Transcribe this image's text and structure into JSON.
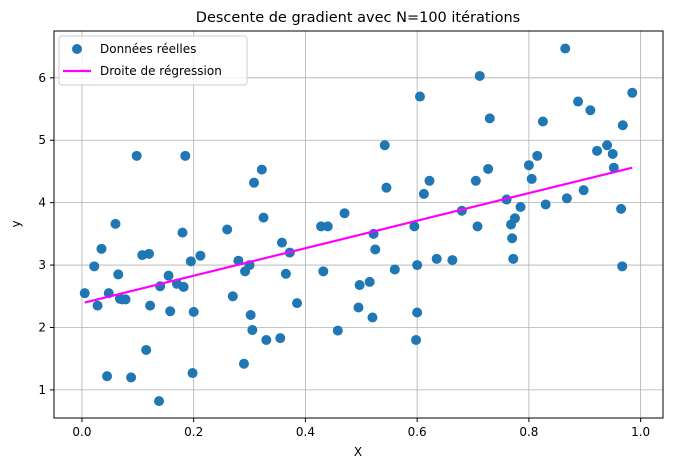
{
  "chart_data": {
    "type": "scatter",
    "title": "Descente de gradient avec N=100 itérations",
    "xlabel": "X",
    "ylabel": "y",
    "xlim": [
      -0.05,
      1.04
    ],
    "ylim": [
      0.55,
      6.75
    ],
    "xticks": [
      0.0,
      0.2,
      0.4,
      0.6,
      0.8,
      1.0
    ],
    "xtick_labels": [
      "0.0",
      "0.2",
      "0.4",
      "0.6",
      "0.8",
      "1.0"
    ],
    "yticks": [
      1,
      2,
      3,
      4,
      5,
      6
    ],
    "ytick_labels": [
      "1",
      "2",
      "3",
      "4",
      "5",
      "6"
    ],
    "grid": true,
    "legend_position": "top-left",
    "series": [
      {
        "name": "Données réelles",
        "kind": "scatter",
        "color": "#1f77b4",
        "x": [
          0.005,
          0.022,
          0.028,
          0.035,
          0.045,
          0.048,
          0.06,
          0.065,
          0.068,
          0.072,
          0.078,
          0.088,
          0.098,
          0.108,
          0.115,
          0.12,
          0.122,
          0.138,
          0.14,
          0.155,
          0.158,
          0.17,
          0.18,
          0.182,
          0.185,
          0.195,
          0.198,
          0.2,
          0.212,
          0.26,
          0.27,
          0.28,
          0.29,
          0.292,
          0.3,
          0.302,
          0.305,
          0.308,
          0.322,
          0.325,
          0.33,
          0.355,
          0.358,
          0.365,
          0.372,
          0.385,
          0.428,
          0.432,
          0.44,
          0.458,
          0.47,
          0.495,
          0.497,
          0.515,
          0.52,
          0.522,
          0.525,
          0.542,
          0.545,
          0.56,
          0.595,
          0.598,
          0.6,
          0.6,
          0.605,
          0.612,
          0.622,
          0.635,
          0.663,
          0.68,
          0.705,
          0.708,
          0.712,
          0.727,
          0.73,
          0.76,
          0.768,
          0.77,
          0.772,
          0.775,
          0.785,
          0.8,
          0.805,
          0.815,
          0.825,
          0.83,
          0.865,
          0.868,
          0.888,
          0.898,
          0.91,
          0.922,
          0.94,
          0.95,
          0.952,
          0.965,
          0.967,
          0.968,
          0.985
        ],
        "y": [
          2.55,
          2.98,
          2.35,
          3.26,
          1.22,
          2.55,
          3.66,
          2.85,
          2.46,
          2.45,
          2.45,
          1.2,
          4.75,
          3.16,
          1.64,
          3.18,
          2.35,
          0.82,
          2.66,
          2.83,
          2.26,
          2.7,
          3.52,
          2.65,
          4.75,
          3.06,
          1.27,
          2.25,
          3.15,
          3.57,
          2.5,
          3.07,
          1.42,
          2.9,
          3.0,
          2.2,
          1.96,
          4.32,
          4.53,
          3.76,
          1.8,
          1.83,
          3.36,
          2.86,
          3.2,
          2.39,
          3.62,
          2.9,
          3.62,
          1.95,
          3.83,
          2.32,
          2.68,
          2.73,
          2.16,
          3.5,
          3.25,
          4.92,
          4.24,
          2.93,
          3.62,
          1.8,
          2.24,
          3.0,
          5.7,
          4.14,
          4.35,
          3.1,
          3.08,
          3.87,
          4.35,
          3.62,
          6.03,
          4.54,
          5.35,
          4.05,
          3.65,
          3.43,
          3.1,
          3.75,
          3.93,
          4.6,
          4.38,
          4.75,
          5.3,
          3.97,
          6.47,
          4.07,
          5.62,
          4.2,
          5.48,
          4.83,
          4.92,
          4.78,
          4.56,
          3.9,
          2.98,
          5.24,
          5.76
        ]
      },
      {
        "name": "Droite de régression",
        "kind": "line",
        "color": "#ff00ff",
        "x": [
          0.005,
          0.985
        ],
        "y": [
          2.4,
          4.56
        ]
      }
    ]
  }
}
